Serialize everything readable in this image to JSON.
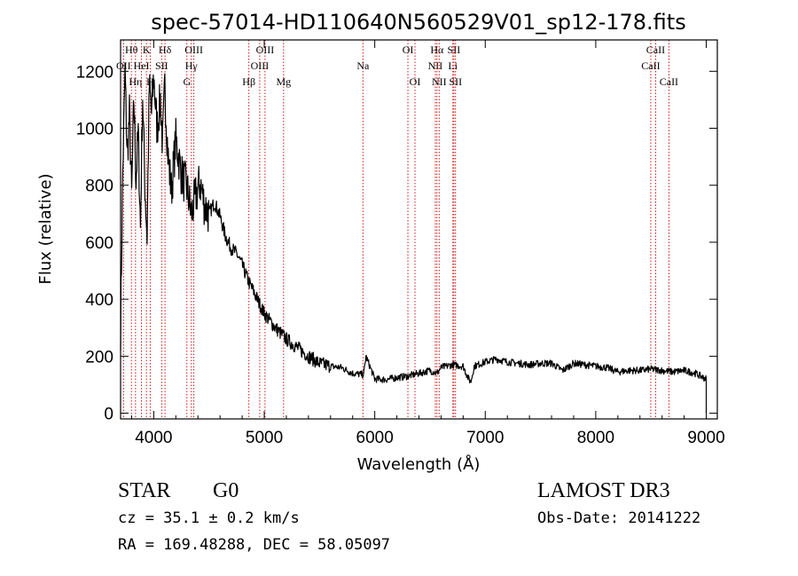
{
  "chart_data": {
    "type": "line",
    "title": "spec-57014-HD110640N560529V01_sp12-178.fits",
    "xlabel": "Wavelength (Å)",
    "ylabel": "Flux (relative)",
    "xlim": [
      3700,
      9100
    ],
    "ylim": [
      -20,
      1310
    ],
    "xticks": [
      4000,
      5000,
      6000,
      7000,
      8000,
      9000
    ],
    "yticks": [
      0,
      200,
      400,
      600,
      800,
      1000,
      1200
    ],
    "series": [
      {
        "name": "spectrum",
        "x": [
          3700,
          3720,
          3740,
          3760,
          3780,
          3800,
          3820,
          3840,
          3860,
          3880,
          3900,
          3920,
          3940,
          3960,
          3980,
          4000,
          4030,
          4060,
          4080,
          4100,
          4130,
          4160,
          4200,
          4250,
          4300,
          4340,
          4380,
          4420,
          4460,
          4500,
          4550,
          4600,
          4650,
          4700,
          4750,
          4800,
          4860,
          4900,
          4950,
          5000,
          5100,
          5200,
          5300,
          5400,
          5500,
          5600,
          5700,
          5800,
          5900,
          5920,
          6000,
          6100,
          6200,
          6300,
          6400,
          6500,
          6563,
          6600,
          6700,
          6800,
          6850,
          6870,
          6900,
          7000,
          7100,
          7200,
          7300,
          7400,
          7500,
          7600,
          7700,
          7800,
          7900,
          8000,
          8100,
          8200,
          8300,
          8400,
          8500,
          8600,
          8700,
          8800,
          8900,
          9000
        ],
        "values": [
          300,
          850,
          1200,
          900,
          1050,
          760,
          1100,
          820,
          980,
          650,
          1120,
          800,
          620,
          1150,
          1050,
          1180,
          1000,
          1100,
          940,
          1150,
          900,
          780,
          960,
          840,
          790,
          700,
          760,
          810,
          730,
          700,
          740,
          690,
          620,
          580,
          560,
          520,
          460,
          430,
          390,
          350,
          300,
          260,
          230,
          200,
          175,
          165,
          160,
          140,
          135,
          200,
          120,
          118,
          125,
          130,
          140,
          150,
          140,
          160,
          170,
          165,
          120,
          110,
          165,
          180,
          190,
          180,
          175,
          170,
          175,
          175,
          150,
          175,
          170,
          165,
          160,
          145,
          150,
          150,
          155,
          150,
          145,
          150,
          140,
          120
        ]
      }
    ],
    "lines": [
      {
        "name": "OII",
        "x": 3727,
        "row": 1
      },
      {
        "name": "Hθ",
        "x": 3798,
        "row": 0
      },
      {
        "name": "Hη",
        "x": 3835,
        "row": 2
      },
      {
        "name": "HeI",
        "x": 3889,
        "row": 1
      },
      {
        "name": "K",
        "x": 3934,
        "row": 0
      },
      {
        "name": "H",
        "x": 3968,
        "row": 2
      },
      {
        "name": "SII",
        "x": 4072,
        "row": 1
      },
      {
        "name": "Hδ",
        "x": 4102,
        "row": 0
      },
      {
        "name": "G",
        "x": 4300,
        "row": 2
      },
      {
        "name": "Hγ",
        "x": 4340,
        "row": 1
      },
      {
        "name": "OIII",
        "x": 4363,
        "row": 0
      },
      {
        "name": "Hβ",
        "x": 4861,
        "row": 2
      },
      {
        "name": "OIII",
        "x": 4959,
        "row": 1
      },
      {
        "name": "OIII",
        "x": 5007,
        "row": 0
      },
      {
        "name": "Mg",
        "x": 5175,
        "row": 2
      },
      {
        "name": "Na",
        "x": 5893,
        "row": 1
      },
      {
        "name": "OI",
        "x": 6300,
        "row": 0
      },
      {
        "name": "OI",
        "x": 6364,
        "row": 2
      },
      {
        "name": "NII",
        "x": 6548,
        "row": 1
      },
      {
        "name": "Hα",
        "x": 6563,
        "row": 0
      },
      {
        "name": "NII",
        "x": 6583,
        "row": 2
      },
      {
        "name": "Li",
        "x": 6707,
        "row": 1
      },
      {
        "name": "SII",
        "x": 6716,
        "row": 0
      },
      {
        "name": "SII",
        "x": 6731,
        "row": 2
      },
      {
        "name": "CaII",
        "x": 8498,
        "row": 1
      },
      {
        "name": "CaII",
        "x": 8542,
        "row": 0
      },
      {
        "name": "CaII",
        "x": 8662,
        "row": 2
      }
    ]
  },
  "info": {
    "class": "STAR",
    "subclass": "G0",
    "survey": "LAMOST DR3",
    "cz": "cz = 35.1 ± 0.2 km/s",
    "obs_date": "Obs-Date: 20141222",
    "radec": "RA = 169.48288, DEC =  58.05097"
  },
  "colors": {
    "line_marker": "#cc0000",
    "spectrum": "#000000"
  }
}
